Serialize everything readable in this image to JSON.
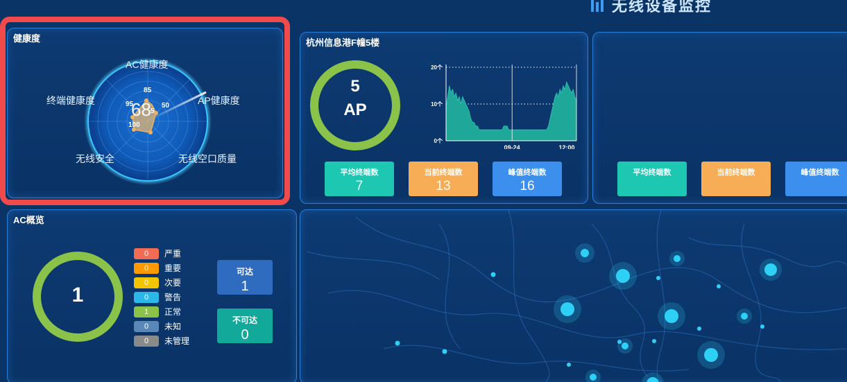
{
  "header": {
    "title": "无线设备监控"
  },
  "health": {
    "title": "健康度",
    "score": "68",
    "axes": [
      "AC健康度",
      "AP健康度",
      "无线空口质量",
      "无线安全",
      "终端健康度"
    ],
    "ring_ticks": [
      "85",
      "50",
      "5",
      "95",
      "100"
    ]
  },
  "building": {
    "title": "杭州信息港F幢5楼",
    "ap_count": "5",
    "ap_unit": "AP",
    "stats": [
      {
        "label": "平均终端数",
        "value": "7",
        "color": "#1ec7b1"
      },
      {
        "label": "当前终端数",
        "value": "13",
        "color": "#f7ad55"
      },
      {
        "label": "峰值终端数",
        "value": "16",
        "color": "#3d8fee"
      }
    ]
  },
  "right_panel": {
    "stats": [
      {
        "label": "平均终端数",
        "color": "#1ec7b1"
      },
      {
        "label": "当前终端数",
        "color": "#f7ad55"
      },
      {
        "label": "峰值终端数",
        "color": "#3d8fee"
      }
    ]
  },
  "chart_data": {
    "type": "area",
    "x_tick_labels": [
      "09-24",
      "12:00"
    ],
    "y_tick_labels": [
      "0个",
      "10个",
      "20个"
    ],
    "ylim": [
      0,
      20
    ],
    "grid": "dotted horizontal at 10 and 20",
    "color": "#1fa89a",
    "series": [
      {
        "values": [
          9,
          12,
          15,
          13,
          14,
          12,
          13,
          11,
          12,
          10,
          12,
          11,
          10,
          9,
          8,
          6,
          5,
          5,
          4,
          4,
          3,
          3,
          3,
          3,
          3,
          3,
          3,
          3,
          3,
          3,
          3,
          3,
          3,
          3,
          3,
          4,
          4,
          4,
          3,
          3,
          3,
          3,
          3,
          3,
          3,
          3,
          3,
          3,
          3,
          3,
          3,
          3,
          3,
          3,
          3,
          3,
          3,
          3,
          3,
          3,
          3,
          3,
          4,
          6,
          8,
          10,
          12,
          13,
          12,
          14,
          13,
          15,
          14,
          16,
          15,
          14,
          13,
          14,
          12,
          11
        ]
      }
    ]
  },
  "ac": {
    "title": "AC概览",
    "total": "1",
    "legend": [
      {
        "count": "0",
        "label": "严重",
        "color": "#f26c54"
      },
      {
        "count": "0",
        "label": "重要",
        "color": "#ff9900"
      },
      {
        "count": "0",
        "label": "次要",
        "color": "#f5c400"
      },
      {
        "count": "0",
        "label": "警告",
        "color": "#2bb7e8"
      },
      {
        "count": "1",
        "label": "正常",
        "color": "#8bc34a"
      },
      {
        "count": "0",
        "label": "未知",
        "color": "#5b86b8"
      },
      {
        "count": "0",
        "label": "未管理",
        "color": "#8a8a8a"
      }
    ],
    "reachable": {
      "label": "可达",
      "value": "1",
      "color": "#2f6cc0"
    },
    "unreachable": {
      "label": "不可达",
      "value": "0",
      "color": "#12a89a"
    }
  }
}
